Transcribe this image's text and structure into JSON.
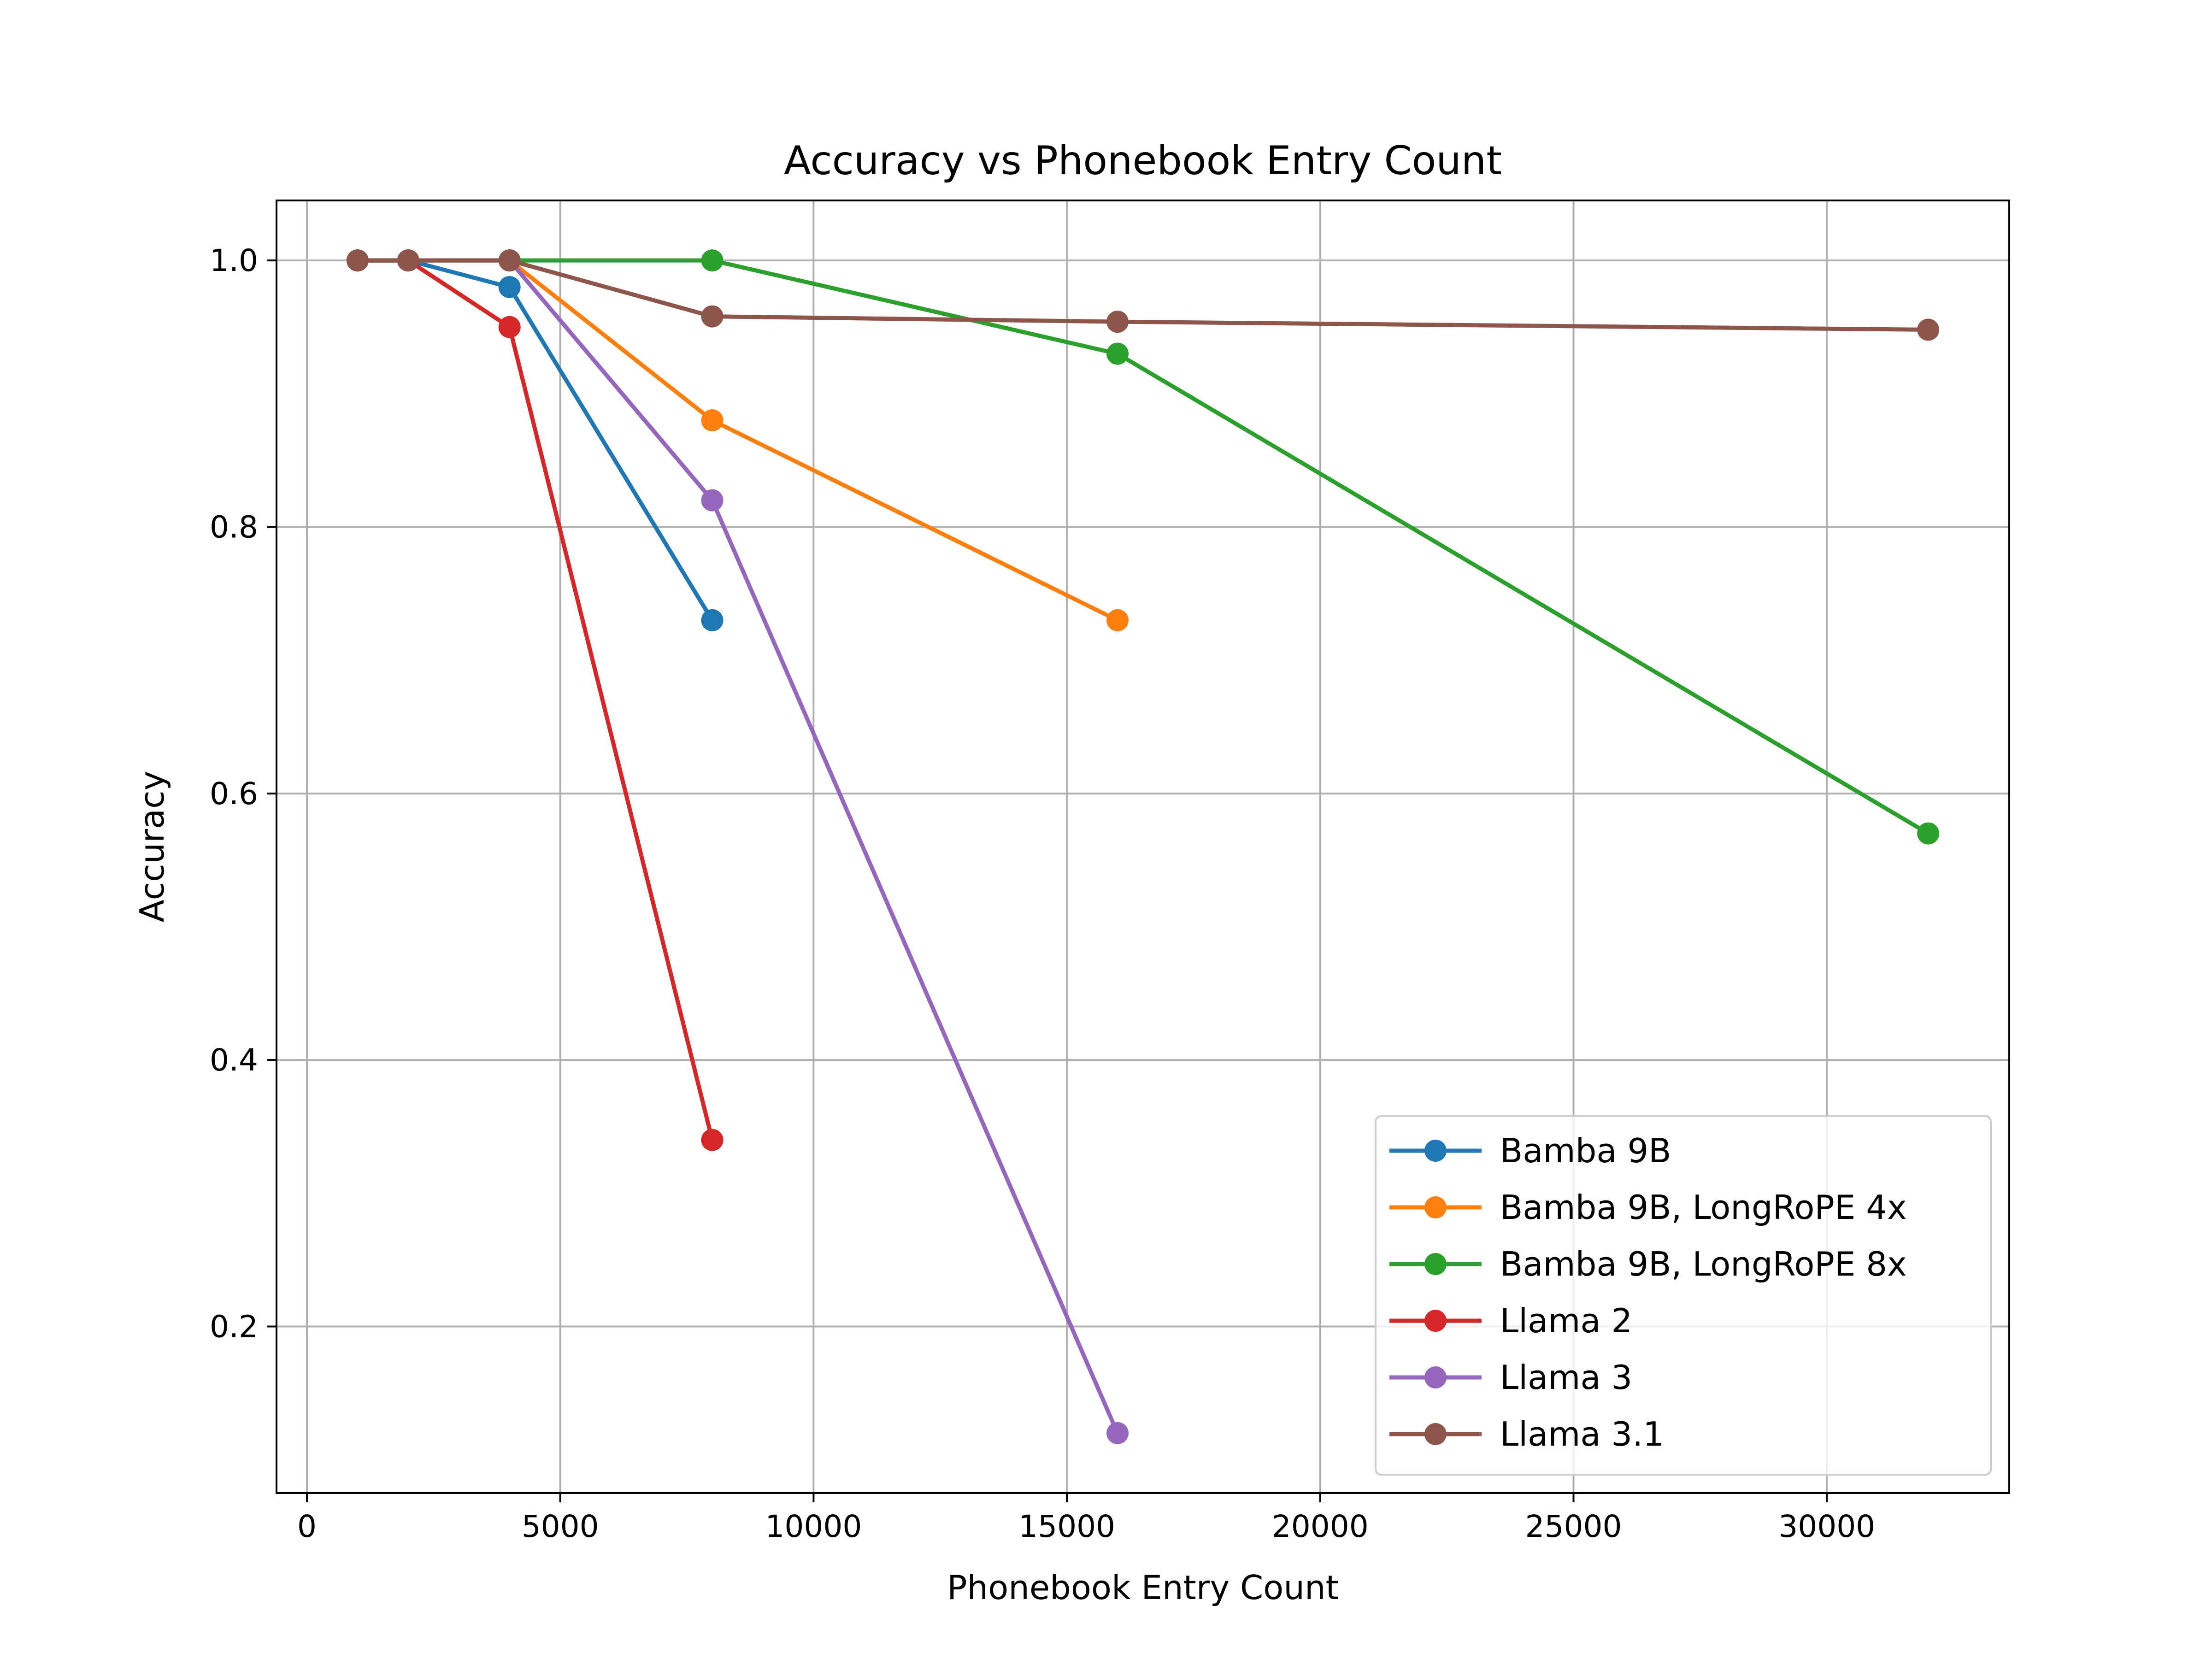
{
  "chart_data": {
    "type": "line",
    "title": "Accuracy vs Phonebook Entry Count",
    "xlabel": "Phonebook Entry Count",
    "ylabel": "Accuracy",
    "xlim": [
      -600,
      33600
    ],
    "ylim": [
      0.075,
      1.045
    ],
    "xticks": [
      0,
      5000,
      10000,
      15000,
      20000,
      25000,
      30000
    ],
    "yticks": [
      0.2,
      0.4,
      0.6,
      0.8,
      1.0
    ],
    "grid": true,
    "legend_position": "lower-right",
    "series": [
      {
        "name": "Bamba 9B",
        "color": "#1f77b4",
        "x": [
          1000,
          2000,
          4000,
          8000
        ],
        "y": [
          1.0,
          1.0,
          0.98,
          0.73
        ]
      },
      {
        "name": "Bamba 9B, LongRoPE 4x",
        "color": "#ff7f0e",
        "x": [
          1000,
          2000,
          4000,
          8000,
          16000
        ],
        "y": [
          1.0,
          1.0,
          1.0,
          0.88,
          0.73
        ]
      },
      {
        "name": "Bamba 9B, LongRoPE 8x",
        "color": "#2ca02c",
        "x": [
          1000,
          2000,
          4000,
          8000,
          16000,
          32000
        ],
        "y": [
          1.0,
          1.0,
          1.0,
          1.0,
          0.93,
          0.57
        ]
      },
      {
        "name": "Llama 2",
        "color": "#d62728",
        "x": [
          1000,
          2000,
          4000,
          8000
        ],
        "y": [
          1.0,
          1.0,
          0.95,
          0.34
        ]
      },
      {
        "name": "Llama 3",
        "color": "#9467bd",
        "x": [
          1000,
          2000,
          4000,
          8000,
          16000
        ],
        "y": [
          1.0,
          1.0,
          1.0,
          0.82,
          0.12
        ]
      },
      {
        "name": "Llama 3.1",
        "color": "#8c564b",
        "x": [
          1000,
          2000,
          4000,
          8000,
          16000,
          32000
        ],
        "y": [
          1.0,
          1.0,
          1.0,
          0.958,
          0.954,
          0.948
        ]
      }
    ]
  }
}
